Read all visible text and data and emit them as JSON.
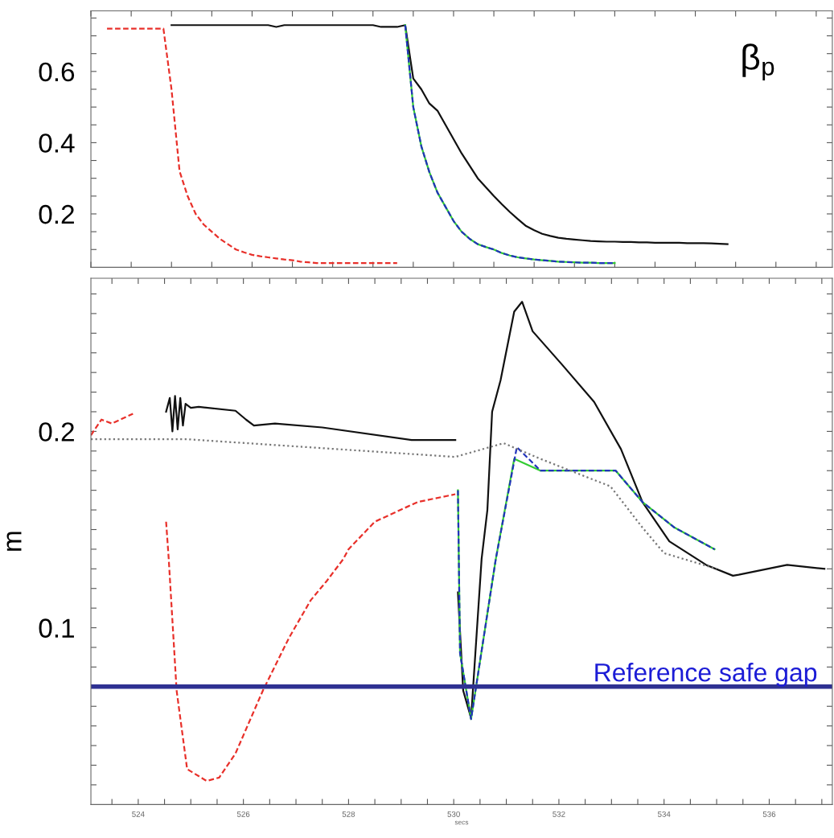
{
  "chart_data": [
    {
      "type": "line",
      "categories": [
        null,
        null,
        null,
        null,
        null,
        null,
        null,
        null,
        null,
        null,
        null,
        null,
        null,
        null,
        null,
        null,
        null,
        null,
        null,
        null,
        null,
        null,
        null,
        null,
        null,
        null,
        null,
        null,
        null,
        null,
        null,
        null,
        null,
        null,
        null,
        null,
        null,
        null,
        null,
        null,
        null,
        null,
        null,
        null,
        null,
        null,
        null,
        null,
        null,
        null,
        null,
        null,
        null,
        null,
        null,
        null,
        null,
        null,
        null,
        null,
        null,
        null,
        null,
        null,
        null,
        null,
        null,
        null,
        null,
        null,
        null,
        null,
        null,
        null,
        null,
        null,
        null,
        null,
        null,
        null,
        null,
        null,
        null,
        null,
        null,
        null,
        null,
        null,
        null,
        null,
        null,
        null,
        null
      ],
      "series": [
        {
          "color": "#e8302a",
          "line_style": "dashed",
          "values": [
            null,
            null,
            0.72,
            0.72,
            0.72,
            0.72,
            0.72,
            0.72,
            0.72,
            0.72,
            0.55,
            0.32,
            0.25,
            0.2,
            0.17,
            0.15,
            0.13,
            0.115,
            0.1,
            0.092,
            0.085,
            0.081,
            0.078,
            0.075,
            0.072,
            0.07,
            0.066,
            0.064,
            0.062,
            0.062,
            0.062,
            0.062,
            0.062,
            0.062,
            0.062,
            0.062,
            0.062,
            0.062,
            0.062,
            null,
            null,
            null,
            null,
            null,
            null,
            null,
            null,
            null,
            null,
            null,
            null,
            null,
            null,
            null,
            null,
            null,
            null,
            null,
            null,
            null,
            null,
            null,
            null,
            null,
            null,
            null,
            null,
            null,
            null,
            null,
            null,
            null,
            null,
            null,
            null,
            null,
            null,
            null,
            null,
            null,
            null,
            null,
            null,
            null,
            null,
            null,
            null,
            null,
            null,
            null,
            null,
            null,
            null
          ]
        },
        {
          "color": "#111111",
          "line_style": "solid",
          "values": [
            null,
            null,
            null,
            null,
            null,
            null,
            null,
            null,
            null,
            null,
            0.73,
            0.73,
            0.73,
            0.73,
            0.73,
            0.73,
            0.73,
            0.73,
            0.73,
            0.73,
            0.73,
            0.73,
            0.73,
            0.725,
            0.73,
            0.73,
            0.73,
            0.73,
            0.73,
            0.73,
            0.73,
            0.73,
            0.73,
            0.73,
            0.73,
            0.73,
            0.725,
            0.725,
            0.725,
            0.73,
            0.58,
            0.55,
            0.51,
            0.49,
            0.45,
            0.41,
            0.37,
            0.335,
            0.3,
            0.275,
            0.25,
            0.227,
            0.205,
            0.185,
            0.166,
            0.154,
            0.144,
            0.138,
            0.133,
            0.13,
            0.128,
            0.126,
            0.124,
            0.123,
            0.122,
            0.122,
            0.121,
            0.121,
            0.12,
            0.12,
            0.119,
            0.119,
            0.119,
            0.119,
            0.118,
            0.118,
            0.118,
            0.117,
            0.116,
            0.115,
            null,
            null,
            null,
            null,
            null,
            null,
            null,
            null,
            null,
            null,
            null,
            null,
            null
          ]
        },
        {
          "color": "#33cc33",
          "line_style": "solid",
          "values": [
            null,
            null,
            null,
            null,
            null,
            null,
            null,
            null,
            null,
            null,
            null,
            null,
            null,
            null,
            null,
            null,
            null,
            null,
            null,
            null,
            null,
            null,
            null,
            null,
            null,
            null,
            null,
            null,
            null,
            null,
            null,
            null,
            null,
            null,
            null,
            null,
            null,
            null,
            null,
            0.73,
            0.5,
            0.39,
            0.317,
            0.26,
            0.22,
            0.18,
            0.15,
            0.13,
            0.115,
            0.107,
            0.1,
            0.09,
            0.083,
            0.078,
            0.075,
            0.072,
            0.07,
            0.068,
            0.066,
            0.065,
            0.064,
            0.063,
            0.063,
            0.062,
            0.062,
            0.062,
            null,
            null,
            null,
            null,
            null,
            null,
            null,
            null,
            null,
            null,
            null,
            null,
            null,
            null,
            null,
            null,
            null,
            null,
            null,
            null,
            null,
            null,
            null,
            null,
            null,
            null,
            null
          ]
        },
        {
          "color": "#2233bb",
          "line_style": "dashed",
          "values": [
            null,
            null,
            null,
            null,
            null,
            null,
            null,
            null,
            null,
            null,
            null,
            null,
            null,
            null,
            null,
            null,
            null,
            null,
            null,
            null,
            null,
            null,
            null,
            null,
            null,
            null,
            null,
            null,
            null,
            null,
            null,
            null,
            null,
            null,
            null,
            null,
            null,
            null,
            null,
            0.73,
            0.5,
            0.39,
            0.317,
            0.26,
            0.22,
            0.18,
            0.15,
            0.13,
            0.115,
            0.107,
            0.1,
            0.09,
            0.083,
            0.078,
            0.075,
            0.072,
            0.07,
            0.068,
            0.066,
            0.065,
            0.064,
            0.063,
            0.063,
            0.062,
            0.062,
            0.062,
            null,
            null,
            null,
            null,
            null,
            null,
            null,
            null,
            null,
            null,
            null,
            null,
            null,
            null,
            null,
            null,
            null,
            null,
            null,
            null,
            null,
            null,
            null,
            null,
            null,
            null,
            null
          ]
        }
      ],
      "ylim": [
        0.05,
        0.77
      ],
      "yticks": [
        {
          "value": 0.1,
          "label": null
        },
        {
          "value": 0.15,
          "label": null
        },
        0.2,
        {
          "value": 0.25,
          "label": null
        },
        {
          "value": 0.3,
          "label": null
        },
        {
          "value": 0.35,
          "label": null
        },
        0.4,
        {
          "value": 0.45,
          "label": null
        },
        {
          "value": 0.5,
          "label": null
        },
        {
          "value": 0.55,
          "label": null
        },
        0.6,
        {
          "value": 0.65,
          "label": null
        },
        {
          "value": 0.7,
          "label": null
        },
        {
          "value": 0.75,
          "label": null
        }
      ],
      "tick_labels": "y",
      "marker": "none",
      "grid": false,
      "annotations": [
        "β$_{p}$"
      ]
    },
    {
      "type": "line",
      "xlabel": "secs",
      "ylabel": "m",
      "series": [
        {
          "color": "#e8302a",
          "line_style": "dashed",
          "x": [
            523.1,
            523.3,
            523.5,
            523.9,
            524.2,
            524.53,
            524.58,
            524.73,
            524.93,
            525.3,
            525.54,
            525.85,
            526.37,
            526.87,
            527.28,
            527.59,
            527.9,
            528.0,
            528.5,
            529.31,
            530.03
          ],
          "values": [
            0.198,
            0.206,
            0.204,
            0.209,
            null,
            0.154,
            0.135,
            0.068,
            0.028,
            0.022,
            0.0237,
            0.036,
            0.068,
            0.095,
            0.114,
            0.124,
            0.135,
            0.14,
            0.154,
            0.164,
            0.168
          ]
        },
        {
          "color": "#111111",
          "line_style": "solid",
          "x": [
            524.53,
            524.6,
            524.65,
            524.7,
            524.75,
            524.8,
            524.85,
            524.9,
            525.0,
            525.15,
            525.85,
            526.05,
            526.2,
            526.6,
            527.5,
            529.2,
            530.03,
            530.05,
            530.08,
            530.18,
            530.33,
            530.53,
            530.64,
            530.73,
            530.89,
            531.15,
            531.3,
            531.5,
            532.06,
            532.67,
            533.18,
            533.59,
            534.1,
            534.8,
            535.31,
            535.42,
            536.34,
            537.05
          ],
          "values": [
            0.21,
            0.217,
            0.2,
            0.218,
            0.201,
            0.217,
            0.203,
            0.214,
            0.212,
            0.2125,
            0.2105,
            0.206,
            0.203,
            0.204,
            0.202,
            0.1956,
            0.1956,
            null,
            0.118,
            0.068,
            0.054,
            0.135,
            0.16,
            0.21,
            0.226,
            0.261,
            0.266,
            0.251,
            0.234,
            0.215,
            0.191,
            0.164,
            0.144,
            0.132,
            0.1265,
            0.127,
            0.132,
            0.13
          ]
        },
        {
          "color": "#33cc33",
          "line_style": "solid",
          "x": [
            530.08,
            530.12,
            530.33,
            530.8,
            531.15,
            531.65,
            533.08,
            533.59,
            534.2,
            534.96
          ],
          "values": [
            0.17,
            0.087,
            0.0535,
            0.135,
            0.186,
            0.18,
            0.18,
            0.164,
            0.151,
            0.14
          ]
        },
        {
          "color": "#2233bb",
          "line_style": "dashed",
          "x": [
            530.08,
            530.12,
            530.33,
            530.8,
            531.2,
            531.65,
            533.08,
            533.59,
            534.2,
            534.96
          ],
          "values": [
            0.17,
            0.087,
            0.0535,
            0.135,
            0.192,
            0.18,
            0.18,
            0.164,
            0.151,
            0.14
          ]
        },
        {
          "color": "#777777",
          "line_style": "dotted",
          "x": [
            523.1,
            524.93,
            530.03,
            530.95,
            531.65,
            532.98,
            533.59,
            534.0,
            535.0
          ],
          "values": [
            0.196,
            0.196,
            0.187,
            0.194,
            0.186,
            0.172,
            0.151,
            0.138,
            0.13
          ]
        }
      ],
      "xlim": [
        523.1,
        537.2
      ],
      "xticks": [
        {
          "value": 523.5,
          "label": null
        },
        524,
        {
          "value": 524.5,
          "label": null
        },
        {
          "value": 525,
          "label": null
        },
        {
          "value": 525.5,
          "label": null
        },
        526,
        {
          "value": 526.5,
          "label": null
        },
        {
          "value": 527,
          "label": null
        },
        {
          "value": 527.5,
          "label": null
        },
        528,
        {
          "value": 528.5,
          "label": null
        },
        {
          "value": 529,
          "label": null
        },
        {
          "value": 529.5,
          "label": null
        },
        530,
        {
          "value": 530.5,
          "label": null
        },
        {
          "value": 531,
          "label": null
        },
        {
          "value": 531.5,
          "label": null
        },
        532,
        {
          "value": 532.5,
          "label": null
        },
        {
          "value": 533,
          "label": null
        },
        {
          "value": 533.5,
          "label": null
        },
        534,
        {
          "value": 534.5,
          "label": null
        },
        {
          "value": 535,
          "label": null
        },
        {
          "value": 535.5,
          "label": null
        },
        536,
        {
          "value": 536.5,
          "label": null
        },
        {
          "value": 537,
          "label": null
        }
      ],
      "ylim": [
        0.01,
        0.278
      ],
      "yticks": [
        {
          "value": 0.02,
          "label": null
        },
        {
          "value": 0.03,
          "label": null
        },
        {
          "value": 0.04,
          "label": null
        },
        {
          "value": 0.05,
          "label": null
        },
        {
          "value": 0.06,
          "label": null
        },
        {
          "value": 0.07,
          "label": null
        },
        {
          "value": 0.08,
          "label": null
        },
        {
          "value": 0.09,
          "label": null
        },
        0.1,
        {
          "value": 0.11,
          "label": null
        },
        {
          "value": 0.12,
          "label": null
        },
        {
          "value": 0.13,
          "label": null
        },
        {
          "value": 0.14,
          "label": null
        },
        {
          "value": 0.15,
          "label": null
        },
        {
          "value": 0.16,
          "label": null
        },
        {
          "value": 0.17,
          "label": null
        },
        {
          "value": 0.18,
          "label": null
        },
        {
          "value": 0.19,
          "label": null
        },
        0.2,
        {
          "value": 0.21,
          "label": null
        },
        {
          "value": 0.22,
          "label": null
        },
        {
          "value": 0.23,
          "label": null
        },
        {
          "value": 0.24,
          "label": null
        },
        {
          "value": 0.25,
          "label": null
        },
        {
          "value": 0.26,
          "label": null
        },
        {
          "value": 0.27,
          "label": null
        }
      ],
      "ref_lines": [
        {
          "axis": "y",
          "value": 0.07,
          "label": "Reference safe gap",
          "color": "#2e3192"
        }
      ],
      "marker": "none",
      "grid": false
    }
  ]
}
